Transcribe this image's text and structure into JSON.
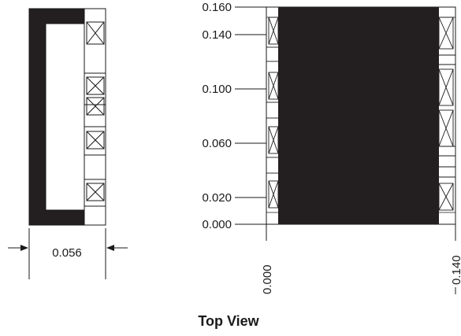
{
  "drawing": {
    "title": "Top View",
    "side_view": {
      "width_dimension": "0.056"
    },
    "top_view": {
      "y_scale_labels": [
        "0.160",
        "0.140",
        "0.100",
        "0.060",
        "0.020",
        "0.000"
      ],
      "x_scale_labels": [
        "0.000",
        "0.140"
      ]
    }
  },
  "colors": {
    "line": "#1a1a1a",
    "body_fill": "#231f20",
    "background": "#ffffff"
  }
}
